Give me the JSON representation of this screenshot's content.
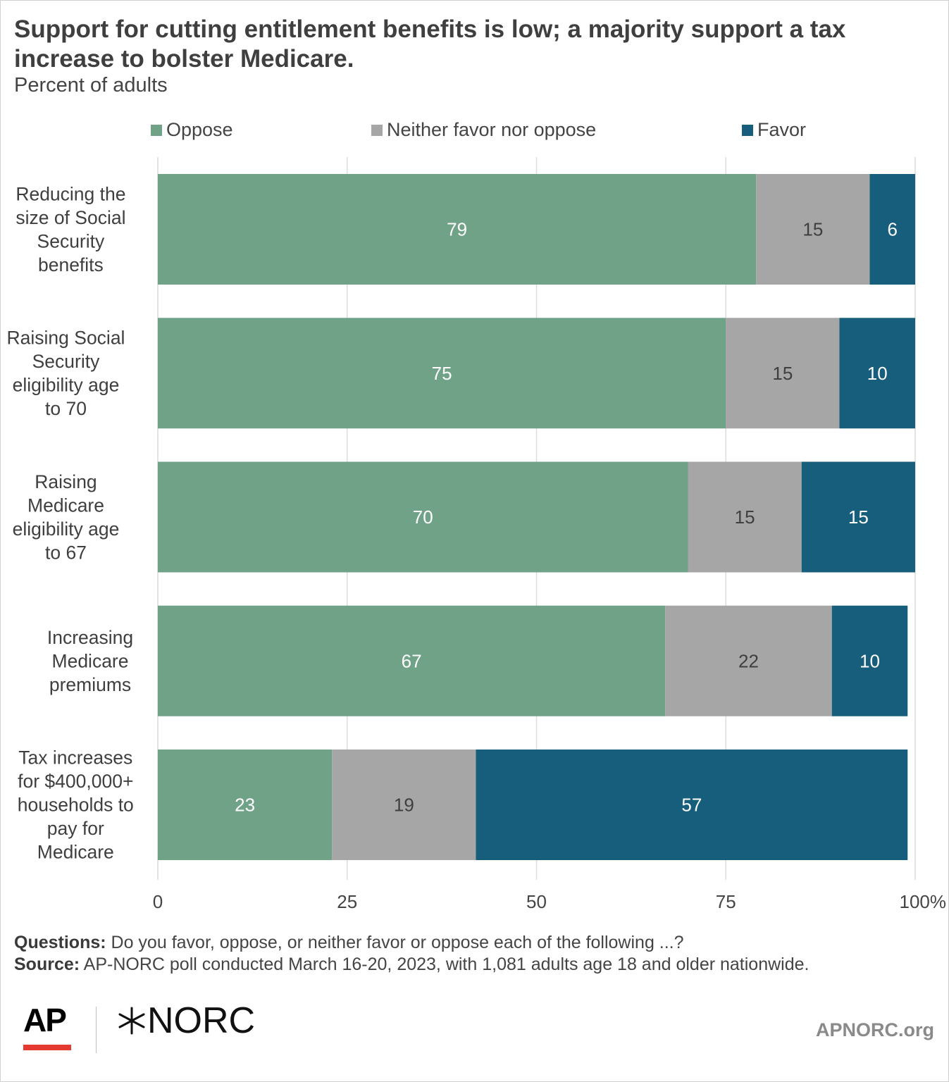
{
  "title": "Support for cutting entitlement benefits is low; a majority support a tax increase to bolster Medicare.",
  "subtitle": "Percent of adults",
  "legend": [
    {
      "label": "Oppose",
      "color": "#70a288"
    },
    {
      "label": "Neither favor nor oppose",
      "color": "#a6a6a6"
    },
    {
      "label": "Favor",
      "color": "#175e7d"
    }
  ],
  "chart_data": {
    "type": "bar",
    "orientation": "horizontal",
    "stacked": true,
    "categories": [
      [
        "Reducing the",
        "size of Social",
        "Security",
        "benefits"
      ],
      [
        "Raising Social",
        "Security",
        "eligibility age",
        "to 70"
      ],
      [
        "Raising",
        "Medicare",
        "eligibility age",
        "to 67"
      ],
      [
        "Increasing",
        "Medicare",
        "premiums"
      ],
      [
        "Tax increases",
        "for $400,000+",
        "households to",
        "pay for",
        "Medicare"
      ]
    ],
    "series": [
      {
        "name": "Oppose",
        "color": "#70a288",
        "values": [
          79,
          75,
          70,
          67,
          23
        ]
      },
      {
        "name": "Neither favor nor oppose",
        "color": "#a6a6a6",
        "values": [
          15,
          15,
          15,
          22,
          19
        ]
      },
      {
        "name": "Favor",
        "color": "#175e7d",
        "values": [
          6,
          10,
          15,
          10,
          57
        ]
      }
    ],
    "xlim": [
      0,
      100
    ],
    "xticks": [
      "0",
      "25",
      "50",
      "75",
      "100%"
    ],
    "grid": true,
    "legend_position": "top"
  },
  "notes": {
    "questions_label": "Questions:",
    "questions_text": "Do you favor, oppose, or neither favor or oppose each of the following ...?",
    "source_label": "Source:",
    "source_text": "AP-NORC poll conducted March 16-20, 2023, with 1,081 adults age 18 and older nationwide."
  },
  "footer": {
    "ap_logo": "AP",
    "norc_logo": "NORC",
    "site": "APNORC.org"
  }
}
